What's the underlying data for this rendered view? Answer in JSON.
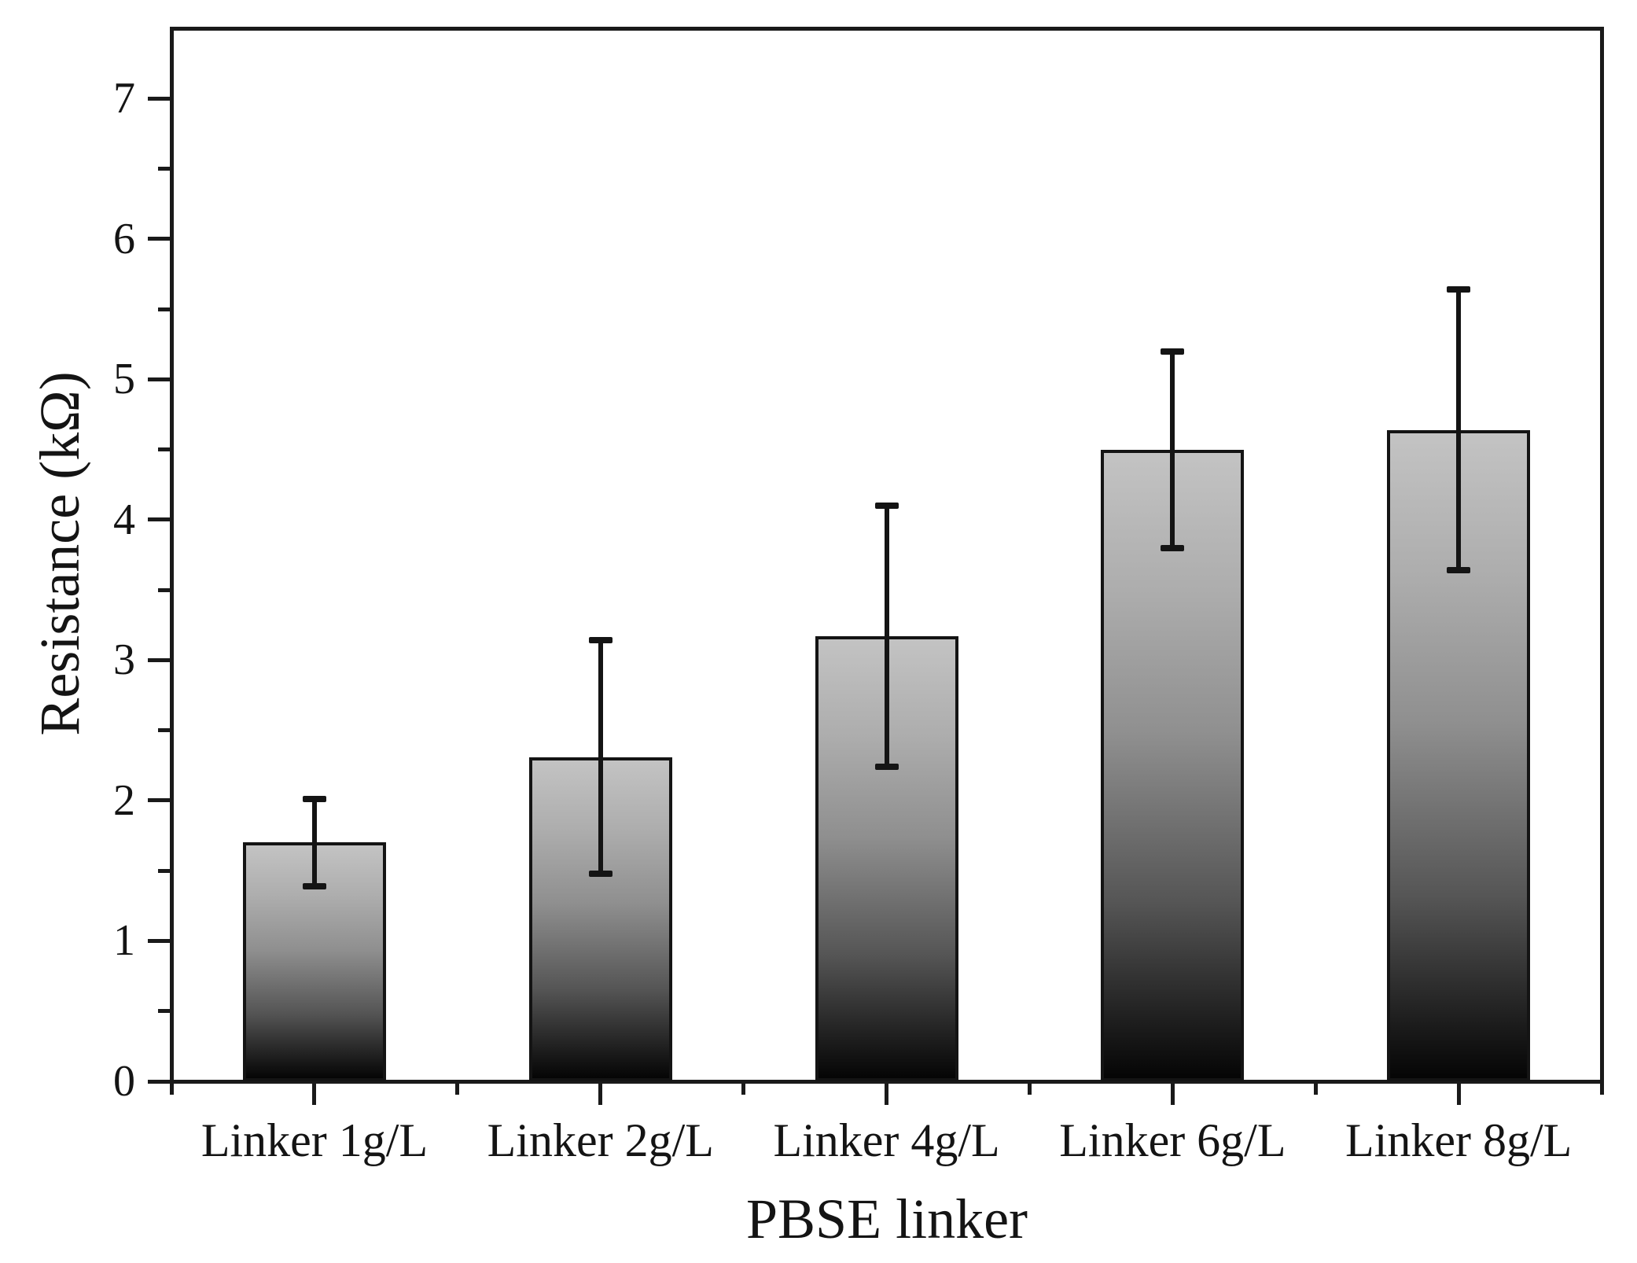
{
  "chart_data": {
    "type": "bar",
    "title": "",
    "xlabel": "PBSE linker",
    "ylabel": "Resistance (kΩ)",
    "categories": [
      "Linker 1g/L",
      "Linker 2g/L",
      "Linker 4g/L",
      "Linker 6g/L",
      "Linker 8g/L"
    ],
    "series": [
      {
        "name": "Resistance",
        "values": [
          1.7,
          2.31,
          3.17,
          4.5,
          4.64
        ],
        "errors": [
          0.31,
          0.83,
          0.93,
          0.7,
          1.0
        ]
      }
    ],
    "ylim": [
      0,
      7.5
    ],
    "yticks": [
      0,
      1,
      2,
      3,
      4,
      5,
      6,
      7
    ],
    "y_minor_tick_step": 0.5,
    "grid": false,
    "legend_position": "none",
    "bar_fill_top_color": "#c3c3c3",
    "bar_fill_bottom_color": "#050505",
    "bar_border_color": "#141414",
    "axis_color": "#1a1a1a",
    "background_color": "#ffffff"
  }
}
